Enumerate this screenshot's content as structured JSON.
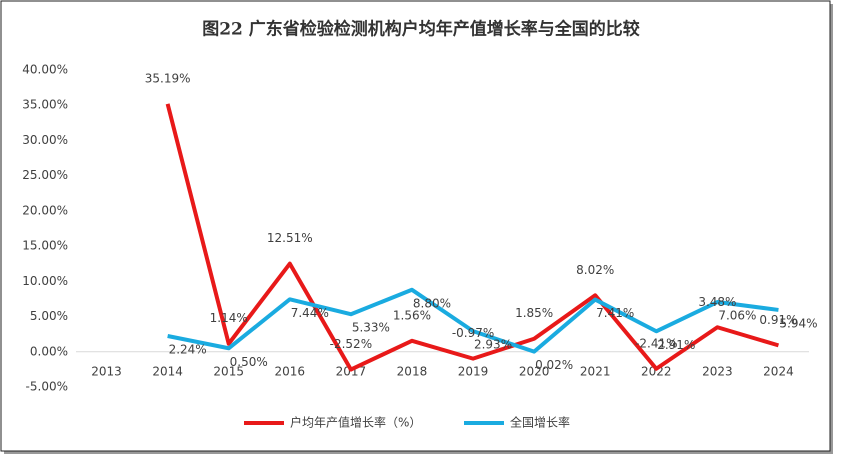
{
  "chart_data": {
    "type": "line",
    "title": "图22  广东省检验检测机构户均年产值增长率与全国的比较",
    "categories": [
      "2013",
      "2014",
      "2015",
      "2016",
      "2017",
      "2018",
      "2019",
      "2020",
      "2021",
      "2022",
      "2023",
      "2024"
    ],
    "series": [
      {
        "name": "户均年产值增长率（%）",
        "color": "#e81919",
        "values": [
          null,
          35.19,
          1.14,
          12.51,
          -2.52,
          1.56,
          -0.97,
          1.85,
          8.02,
          -2.41,
          3.48,
          0.91
        ],
        "value_labels": [
          null,
          "35.19%",
          "1.14%",
          "12.51%",
          "-2.52%",
          "1.56%",
          "-0.97%",
          "1.85%",
          "8.02%",
          "-2.41%",
          "3.48%",
          "0.91%"
        ]
      },
      {
        "name": "全国增长率",
        "color": "#1aabe0",
        "values": [
          null,
          2.24,
          0.5,
          7.44,
          5.33,
          8.8,
          2.93,
          0.02,
          7.41,
          2.91,
          7.06,
          5.94
        ],
        "value_labels": [
          null,
          "2.24%",
          "0.50%",
          "7.44%",
          "5.33%",
          "8.80%",
          "2.93%",
          "0.02%",
          "7.41%",
          "2.91%",
          "7.06%",
          "5.94%"
        ]
      }
    ],
    "ylim": [
      -5,
      40
    ],
    "yticks": [
      {
        "value": -5,
        "label": "-5.00%"
      },
      {
        "value": 0,
        "label": "0.00%"
      },
      {
        "value": 5,
        "label": "5.00%"
      },
      {
        "value": 10,
        "label": "10.00%"
      },
      {
        "value": 15,
        "label": "15.00%"
      },
      {
        "value": 20,
        "label": "20.00%"
      },
      {
        "value": 25,
        "label": "25.00%"
      },
      {
        "value": 30,
        "label": "30.00%"
      },
      {
        "value": 35,
        "label": "35.00%"
      },
      {
        "value": 40,
        "label": "40.00%"
      }
    ],
    "grid": false
  }
}
